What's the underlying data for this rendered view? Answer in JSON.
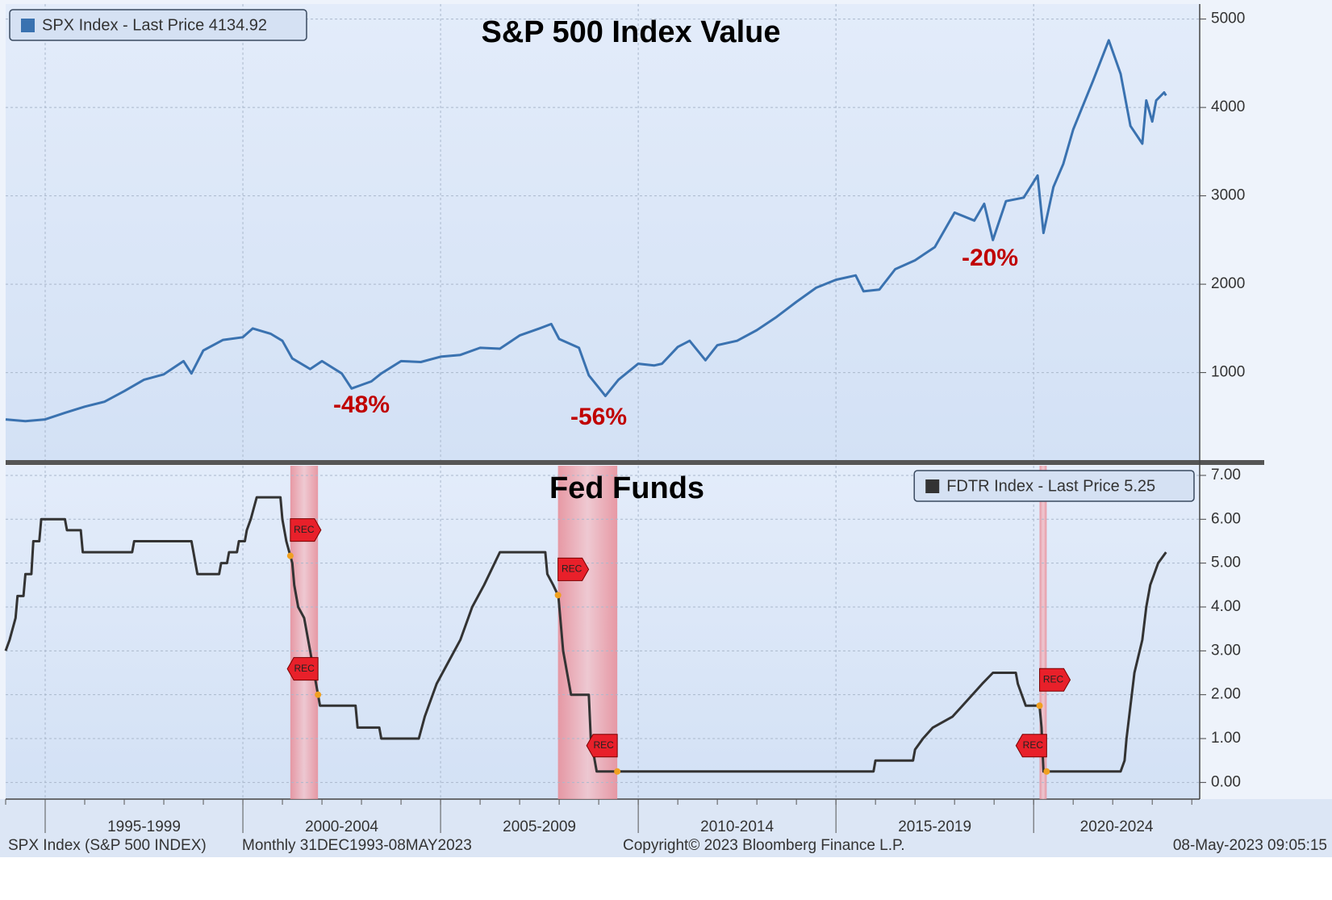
{
  "chart_data": [
    {
      "type": "line",
      "title": "S&P 500 Index Value",
      "legend": "upper left",
      "grid": true,
      "x": [
        1994.0,
        1994.5,
        1995.0,
        1995.5,
        1996.0,
        1996.5,
        1997.0,
        1997.5,
        1998.0,
        1998.5,
        1998.7,
        1999.0,
        1999.5,
        2000.0,
        2000.25,
        2000.7,
        2001.0,
        2001.25,
        2001.7,
        2002.0,
        2002.5,
        2002.75,
        2003.0,
        2003.25,
        2003.5,
        2004.0,
        2004.5,
        2005.0,
        2005.5,
        2006.0,
        2006.5,
        2007.0,
        2007.5,
        2007.8,
        2008.0,
        2008.5,
        2008.75,
        2009.0,
        2009.17,
        2009.5,
        2010.0,
        2010.4,
        2010.6,
        2011.0,
        2011.3,
        2011.7,
        2012.0,
        2012.5,
        2013.0,
        2013.5,
        2014.0,
        2014.5,
        2015.0,
        2015.5,
        2015.7,
        2016.1,
        2016.5,
        2017.0,
        2017.5,
        2018.0,
        2018.5,
        2018.75,
        2018.97,
        2019.3,
        2019.75,
        2020.1,
        2020.25,
        2020.5,
        2020.75,
        2021.0,
        2021.5,
        2021.9,
        2022.2,
        2022.45,
        2022.75,
        2022.85,
        2023.0,
        2023.1,
        2023.3,
        2023.35
      ],
      "series": [
        {
          "name": "SPX Index - Last Price 4134.92",
          "color": "#3a72b0",
          "values": [
            470,
            450,
            470,
            545,
            615,
            670,
            790,
            920,
            980,
            1130,
            990,
            1250,
            1370,
            1400,
            1500,
            1440,
            1360,
            1160,
            1040,
            1130,
            990,
            820,
            860,
            900,
            990,
            1130,
            1120,
            1180,
            1200,
            1280,
            1270,
            1420,
            1500,
            1550,
            1380,
            1280,
            970,
            830,
            735,
            920,
            1100,
            1080,
            1100,
            1290,
            1360,
            1140,
            1310,
            1360,
            1480,
            1630,
            1800,
            1960,
            2050,
            2100,
            1920,
            1940,
            2170,
            2270,
            2420,
            2810,
            2720,
            2910,
            2500,
            2940,
            2980,
            3230,
            2580,
            3100,
            3360,
            3750,
            4300,
            4760,
            4380,
            3790,
            3590,
            4080,
            3840,
            4080,
            4170,
            4135
          ]
        }
      ],
      "xlim": [
        1994.0,
        2024.2
      ],
      "xticks": [
        1995,
        2000,
        2005,
        2010,
        2015,
        2020
      ],
      "ylim": [
        10,
        5170
      ],
      "yticks": [
        1000,
        2000,
        3000,
        4000,
        5000
      ],
      "annotations": [
        "-48%",
        "-56%",
        "-20%"
      ]
    },
    {
      "type": "line",
      "title": "Fed Funds",
      "legend": "upper right",
      "grid": true,
      "x": [
        1994.0,
        1994.1,
        1994.25,
        1994.3,
        1994.45,
        1994.5,
        1994.65,
        1994.7,
        1994.85,
        1994.9,
        1995.5,
        1995.55,
        1995.9,
        1995.95,
        1997.2,
        1997.25,
        1998.7,
        1998.85,
        1999.4,
        1999.45,
        1999.6,
        1999.65,
        1999.85,
        1999.9,
        2000.05,
        2000.1,
        2000.2,
        2000.35,
        2000.95,
        2001.0,
        2001.1,
        2001.25,
        2001.3,
        2001.4,
        2001.55,
        2001.7,
        2001.8,
        2001.9,
        2001.95,
        2002.85,
        2002.9,
        2003.45,
        2003.5,
        2004.45,
        2004.6,
        2004.9,
        2005.2,
        2005.5,
        2005.8,
        2006.1,
        2006.5,
        2007.65,
        2007.7,
        2007.85,
        2007.98,
        2008.1,
        2008.3,
        2008.75,
        2008.8,
        2008.95,
        2015.95,
        2016.0,
        2016.95,
        2017.0,
        2017.2,
        2017.45,
        2017.95,
        2018.2,
        2018.45,
        2018.7,
        2018.97,
        2019.55,
        2019.6,
        2019.7,
        2019.8,
        2020.15,
        2020.2,
        2020.25,
        2022.2,
        2022.3,
        2022.35,
        2022.45,
        2022.55,
        2022.75,
        2022.85,
        2022.95,
        2023.05,
        2023.15,
        2023.35
      ],
      "series": [
        {
          "name": "FDTR Index - Last Price 5.25",
          "color": "#333333",
          "values": [
            3.0,
            3.25,
            3.75,
            4.25,
            4.25,
            4.75,
            4.75,
            5.5,
            5.5,
            6.0,
            6.0,
            5.75,
            5.75,
            5.25,
            5.25,
            5.5,
            5.5,
            4.75,
            4.75,
            5.0,
            5.0,
            5.25,
            5.25,
            5.5,
            5.5,
            5.75,
            6.0,
            6.5,
            6.5,
            6.0,
            5.5,
            5.0,
            4.5,
            4.0,
            3.75,
            3.0,
            2.5,
            2.0,
            1.75,
            1.75,
            1.25,
            1.25,
            1.0,
            1.0,
            1.5,
            2.25,
            2.75,
            3.25,
            4.0,
            4.5,
            5.25,
            5.25,
            4.75,
            4.5,
            4.25,
            3.0,
            2.0,
            2.0,
            1.0,
            0.25,
            0.25,
            0.5,
            0.5,
            0.75,
            1.0,
            1.25,
            1.5,
            1.75,
            2.0,
            2.25,
            2.5,
            2.5,
            2.25,
            2.0,
            1.75,
            1.75,
            1.25,
            0.25,
            0.25,
            0.5,
            1.0,
            1.75,
            2.5,
            3.25,
            4.0,
            4.5,
            4.75,
            5.0,
            5.25
          ]
        }
      ],
      "xlim": [
        1994.0,
        2024.2
      ],
      "xticks": [
        {
          "value": 1995,
          "label": "1995-1999"
        },
        {
          "value": 2000,
          "label": "2000-2004"
        },
        {
          "value": 2005,
          "label": "2005-2009"
        },
        {
          "value": 2010,
          "label": "2010-2014"
        },
        {
          "value": 2015,
          "label": "2015-2019"
        },
        {
          "value": 2020,
          "label": "2020-2024"
        }
      ],
      "ylim": [
        -0.38,
        7.22
      ],
      "yticks": [
        {
          "value": 0,
          "label": "0.00"
        },
        {
          "value": 1,
          "label": "1.00"
        },
        {
          "value": 2,
          "label": "2.00"
        },
        {
          "value": 3,
          "label": "3.00"
        },
        {
          "value": 4,
          "label": "4.00"
        },
        {
          "value": 5,
          "label": "5.00"
        },
        {
          "value": 6,
          "label": "6.00"
        },
        {
          "value": 7,
          "label": "7.00"
        }
      ],
      "recessions": [
        {
          "start": 2001.2,
          "end": 2001.9
        },
        {
          "start": 2007.97,
          "end": 2009.47
        },
        {
          "start": 2020.15,
          "end": 2020.33
        }
      ],
      "recession_flag": "REC"
    }
  ],
  "footer": {
    "security": "SPX Index (S&P 500 INDEX)",
    "period": "Monthly 31DEC1993-08MAY2023",
    "copyright": "Copyright© 2023 Bloomberg Finance L.P.",
    "timestamp": "08-May-2023 09:05:15"
  }
}
